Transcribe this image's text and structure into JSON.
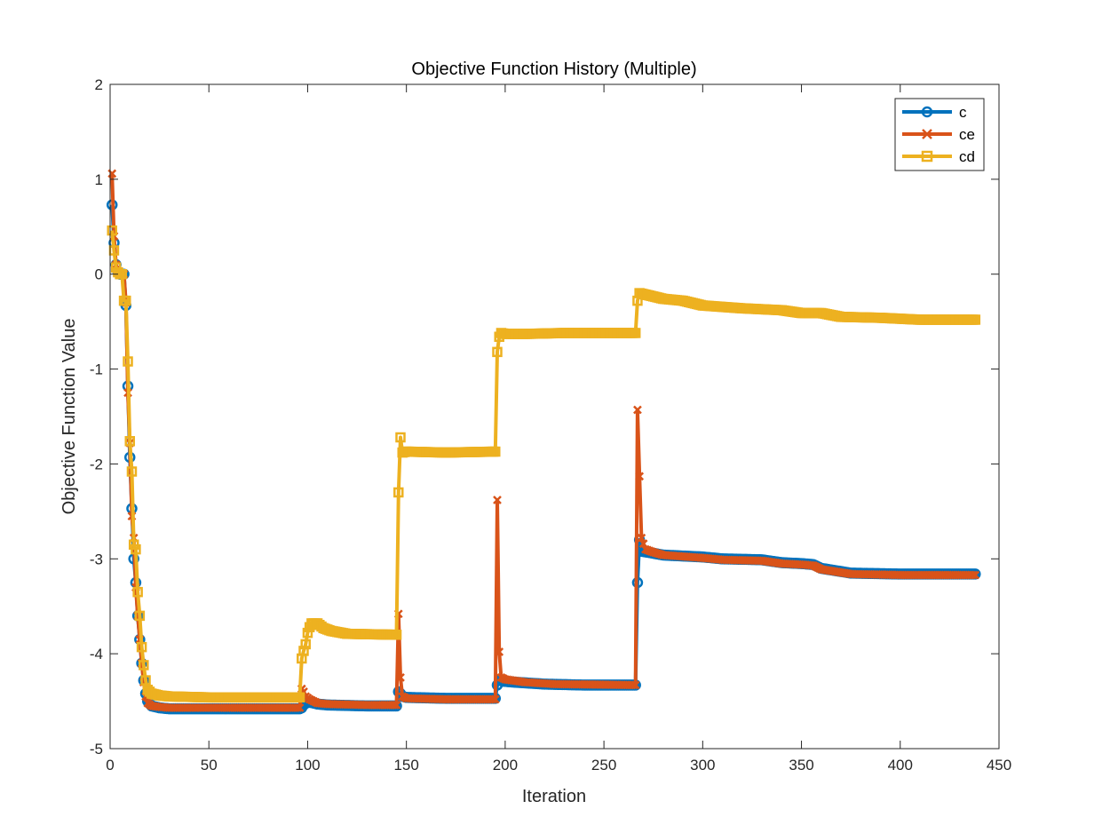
{
  "chart_data": {
    "type": "line",
    "title": "Objective Function History (Multiple)",
    "xlabel": "Iteration",
    "ylabel": "Objective Function Value",
    "xlim": [
      0,
      450
    ],
    "ylim": [
      -5,
      2
    ],
    "xticks": [
      0,
      50,
      100,
      150,
      200,
      250,
      300,
      350,
      400,
      450
    ],
    "yticks": [
      -5,
      -4,
      -3,
      -2,
      -1,
      0,
      1,
      2
    ],
    "grid": false,
    "legend_position": "top-right",
    "series": [
      {
        "name": "c",
        "color": "#0072BD",
        "marker": "circle",
        "points": [
          [
            1,
            0.73
          ],
          [
            2,
            0.33
          ],
          [
            3,
            0.1
          ],
          [
            4,
            0.02
          ],
          [
            5,
            0.0
          ],
          [
            6,
            0.0
          ],
          [
            7,
            0.0
          ],
          [
            8,
            -0.33
          ],
          [
            9,
            -1.18
          ],
          [
            10,
            -1.93
          ],
          [
            11,
            -2.47
          ],
          [
            12,
            -3.0
          ],
          [
            13,
            -3.25
          ],
          [
            14,
            -3.6
          ],
          [
            15,
            -3.85
          ],
          [
            16,
            -4.1
          ],
          [
            17,
            -4.28
          ],
          [
            18,
            -4.42
          ],
          [
            19,
            -4.5
          ],
          [
            21,
            -4.55
          ],
          [
            25,
            -4.57
          ],
          [
            30,
            -4.58
          ],
          [
            50,
            -4.58
          ],
          [
            96,
            -4.58
          ],
          [
            97,
            -4.57
          ],
          [
            98,
            -4.54
          ],
          [
            99,
            -4.52
          ],
          [
            101,
            -4.51
          ],
          [
            105,
            -4.53
          ],
          [
            110,
            -4.54
          ],
          [
            130,
            -4.55
          ],
          [
            145,
            -4.55
          ],
          [
            146,
            -4.4
          ],
          [
            147,
            -4.42
          ],
          [
            148,
            -4.45
          ],
          [
            150,
            -4.46
          ],
          [
            170,
            -4.47
          ],
          [
            195,
            -4.47
          ],
          [
            196,
            -4.33
          ],
          [
            197,
            -4.28
          ],
          [
            199,
            -4.29
          ],
          [
            205,
            -4.3
          ],
          [
            220,
            -4.32
          ],
          [
            240,
            -4.33
          ],
          [
            266,
            -4.33
          ],
          [
            267,
            -3.25
          ],
          [
            268,
            -2.8
          ],
          [
            269,
            -2.92
          ],
          [
            272,
            -2.93
          ],
          [
            280,
            -2.96
          ],
          [
            300,
            -2.98
          ],
          [
            310,
            -3.0
          ],
          [
            330,
            -3.01
          ],
          [
            340,
            -3.04
          ],
          [
            350,
            -3.05
          ],
          [
            356,
            -3.06
          ],
          [
            360,
            -3.1
          ],
          [
            375,
            -3.15
          ],
          [
            400,
            -3.16
          ],
          [
            438,
            -3.16
          ]
        ]
      },
      {
        "name": "ce",
        "color": "#D95319",
        "marker": "x",
        "points": [
          [
            1,
            1.06
          ],
          [
            2,
            0.4
          ],
          [
            3,
            0.1
          ],
          [
            4,
            0.02
          ],
          [
            5,
            0.0
          ],
          [
            6,
            0.0
          ],
          [
            7,
            0.0
          ],
          [
            8,
            -0.3
          ],
          [
            9,
            -1.25
          ],
          [
            10,
            -1.78
          ],
          [
            11,
            -2.55
          ],
          [
            12,
            -2.78
          ],
          [
            13,
            -3.3
          ],
          [
            14,
            -3.6
          ],
          [
            15,
            -3.85
          ],
          [
            16,
            -4.1
          ],
          [
            17,
            -4.3
          ],
          [
            18,
            -4.45
          ],
          [
            19,
            -4.52
          ],
          [
            21,
            -4.55
          ],
          [
            25,
            -4.56
          ],
          [
            30,
            -4.57
          ],
          [
            50,
            -4.57
          ],
          [
            96,
            -4.57
          ],
          [
            97,
            -4.37
          ],
          [
            98,
            -4.4
          ],
          [
            99,
            -4.45
          ],
          [
            101,
            -4.48
          ],
          [
            105,
            -4.52
          ],
          [
            110,
            -4.53
          ],
          [
            130,
            -4.54
          ],
          [
            145,
            -4.54
          ],
          [
            146,
            -3.58
          ],
          [
            147,
            -4.25
          ],
          [
            148,
            -4.45
          ],
          [
            150,
            -4.47
          ],
          [
            170,
            -4.48
          ],
          [
            195,
            -4.48
          ],
          [
            196,
            -2.38
          ],
          [
            197,
            -3.98
          ],
          [
            198,
            -4.25
          ],
          [
            200,
            -4.27
          ],
          [
            210,
            -4.3
          ],
          [
            225,
            -4.32
          ],
          [
            266,
            -4.33
          ],
          [
            267,
            -1.43
          ],
          [
            268,
            -2.13
          ],
          [
            269,
            -2.78
          ],
          [
            271,
            -2.9
          ],
          [
            275,
            -2.93
          ],
          [
            280,
            -2.96
          ],
          [
            300,
            -2.99
          ],
          [
            310,
            -3.01
          ],
          [
            330,
            -3.02
          ],
          [
            340,
            -3.05
          ],
          [
            350,
            -3.06
          ],
          [
            356,
            -3.07
          ],
          [
            360,
            -3.11
          ],
          [
            375,
            -3.16
          ],
          [
            400,
            -3.17
          ],
          [
            438,
            -3.17
          ]
        ]
      },
      {
        "name": "cd",
        "color": "#EDB120",
        "marker": "square",
        "points": [
          [
            1,
            0.46
          ],
          [
            2,
            0.25
          ],
          [
            3,
            0.07
          ],
          [
            4,
            0.02
          ],
          [
            5,
            0.0
          ],
          [
            6,
            0.0
          ],
          [
            7,
            -0.28
          ],
          [
            8,
            -0.28
          ],
          [
            9,
            -0.92
          ],
          [
            10,
            -1.76
          ],
          [
            11,
            -2.08
          ],
          [
            12,
            -2.85
          ],
          [
            13,
            -2.9
          ],
          [
            14,
            -3.35
          ],
          [
            15,
            -3.6
          ],
          [
            16,
            -3.93
          ],
          [
            17,
            -4.12
          ],
          [
            18,
            -4.28
          ],
          [
            19,
            -4.38
          ],
          [
            21,
            -4.42
          ],
          [
            25,
            -4.44
          ],
          [
            30,
            -4.45
          ],
          [
            50,
            -4.46
          ],
          [
            96,
            -4.46
          ],
          [
            97,
            -4.05
          ],
          [
            98,
            -3.97
          ],
          [
            99,
            -3.9
          ],
          [
            100,
            -3.78
          ],
          [
            101,
            -3.72
          ],
          [
            102,
            -3.68
          ],
          [
            105,
            -3.68
          ],
          [
            108,
            -3.73
          ],
          [
            112,
            -3.76
          ],
          [
            120,
            -3.79
          ],
          [
            145,
            -3.8
          ],
          [
            146,
            -2.3
          ],
          [
            147,
            -1.72
          ],
          [
            148,
            -1.88
          ],
          [
            150,
            -1.87
          ],
          [
            170,
            -1.88
          ],
          [
            195,
            -1.87
          ],
          [
            196,
            -0.82
          ],
          [
            197,
            -0.66
          ],
          [
            198,
            -0.62
          ],
          [
            200,
            -0.63
          ],
          [
            210,
            -0.63
          ],
          [
            230,
            -0.62
          ],
          [
            266,
            -0.62
          ],
          [
            267,
            -0.28
          ],
          [
            268,
            -0.2
          ],
          [
            272,
            -0.22
          ],
          [
            280,
            -0.26
          ],
          [
            290,
            -0.28
          ],
          [
            300,
            -0.33
          ],
          [
            320,
            -0.36
          ],
          [
            340,
            -0.38
          ],
          [
            350,
            -0.41
          ],
          [
            360,
            -0.41
          ],
          [
            370,
            -0.45
          ],
          [
            390,
            -0.46
          ],
          [
            410,
            -0.48
          ],
          [
            438,
            -0.48
          ]
        ]
      }
    ]
  }
}
